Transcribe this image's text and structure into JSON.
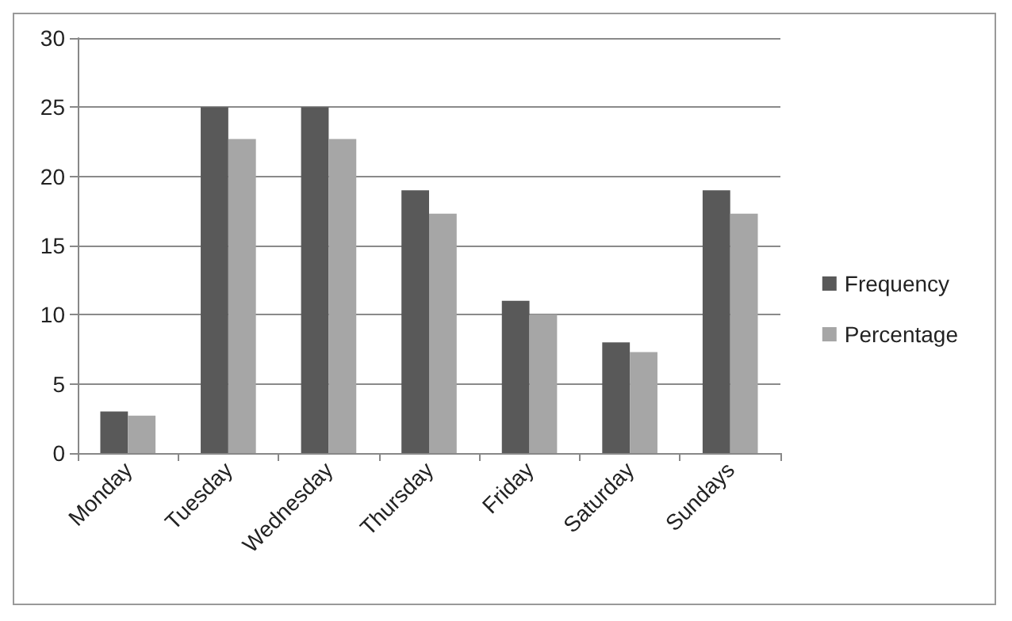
{
  "chart_data": {
    "type": "bar",
    "categories": [
      "Monday",
      "Tuesday",
      "Wednesday",
      "Thursday",
      "Friday",
      "Saturday",
      "Sundays"
    ],
    "series": [
      {
        "name": "Frequency",
        "color": "#595959",
        "values": [
          3,
          25,
          25,
          19,
          11,
          8,
          19
        ]
      },
      {
        "name": "Percentage",
        "color": "#a6a6a6",
        "values": [
          2.7,
          22.7,
          22.7,
          17.3,
          10,
          7.3,
          17.3
        ]
      }
    ],
    "ylim": [
      0,
      30
    ],
    "yticks": [
      0,
      5,
      10,
      15,
      20,
      25,
      30
    ],
    "grid": "y",
    "legend": "right"
  }
}
